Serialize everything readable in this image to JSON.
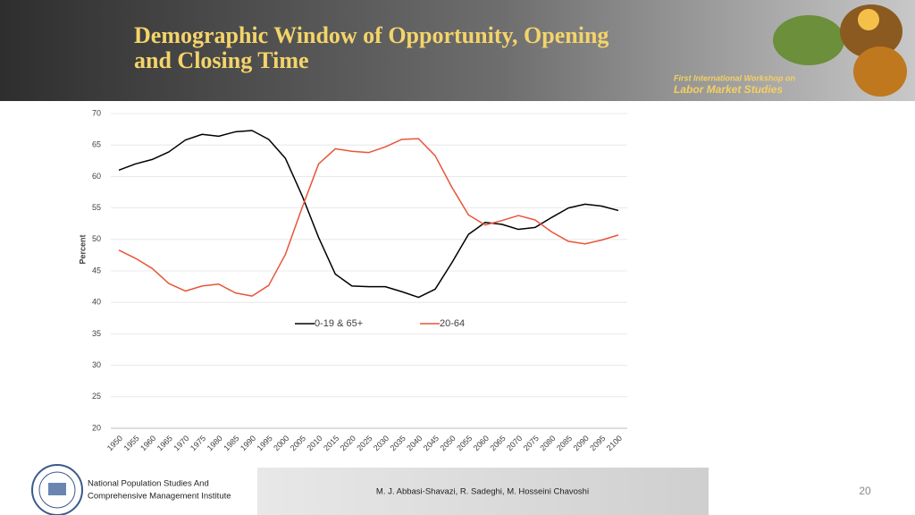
{
  "chart_data": {
    "type": "line",
    "title": [
      "Demographic Window of Opportunity, Opening",
      "and Closing Time"
    ],
    "y_label": "Percent",
    "categories": [
      "1950",
      "1955",
      "1960",
      "1965",
      "1970",
      "1975",
      "1980",
      "1985",
      "1990",
      "1995",
      "2000",
      "2005",
      "2010",
      "2015",
      "2020",
      "2025",
      "2030",
      "2035",
      "2040",
      "2045",
      "2050",
      "2055",
      "2060",
      "2065",
      "2070",
      "2075",
      "2080",
      "2085",
      "2090",
      "2095",
      "2100"
    ],
    "series": [
      {
        "name": "0-19 & 65+",
        "color": "#000000",
        "values": [
          61.0,
          62.0,
          62.7,
          63.9,
          65.8,
          66.7,
          66.4,
          67.1,
          67.3,
          65.9,
          62.9,
          57.0,
          50.3,
          44.5,
          42.6,
          42.5,
          42.5,
          41.7,
          40.8,
          42.1,
          46.3,
          50.8,
          52.7,
          52.4,
          51.6,
          51.9,
          53.5,
          55.0,
          55.6,
          55.3,
          54.6
        ]
      },
      {
        "name": "20-64",
        "color": "#e8553a",
        "values": [
          48.3,
          47.0,
          45.4,
          43.0,
          41.8,
          42.6,
          42.9,
          41.5,
          41.0,
          42.7,
          47.6,
          55.0,
          62.0,
          64.4,
          64.0,
          63.8,
          64.7,
          65.9,
          66.0,
          63.3,
          58.3,
          53.9,
          52.3,
          53.0,
          53.8,
          53.1,
          51.2,
          49.7,
          49.3,
          49.9,
          50.7
        ]
      }
    ],
    "ylim": [
      20,
      70
    ],
    "yticks": [
      20,
      25,
      30,
      35,
      40,
      45,
      50,
      55,
      60,
      65,
      70
    ],
    "grid": true
  },
  "banner": [
    "First International Workshop on",
    "Labor Market Studies"
  ],
  "footer": {
    "institute": [
      "National Population Studies And",
      "Comprehensive Management Institute"
    ],
    "authors": "M. J. Abbasi-Shavazi, R. Sadeghi, M. Hosseini Chavoshi",
    "page": "20"
  }
}
